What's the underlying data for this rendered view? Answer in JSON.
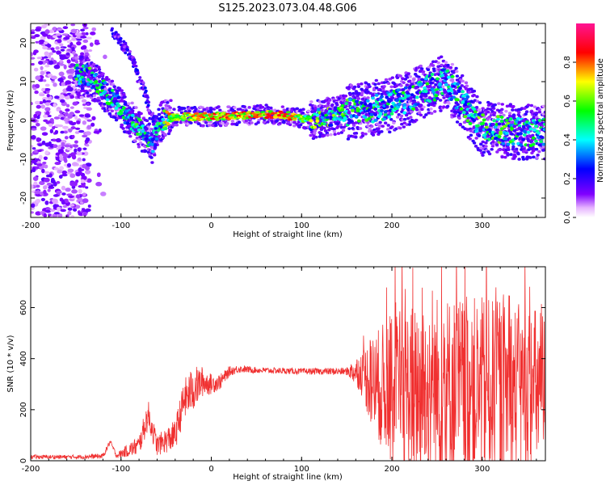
{
  "chart_data": [
    {
      "type": "heatmap",
      "title": "S125.2023.073.04.48.G06",
      "xlabel": "Height of straight line (km)",
      "ylabel": "Frequency (Hz)",
      "xlim": [
        -200,
        370
      ],
      "ylim": [
        -25,
        25
      ],
      "xticks": [
        "-200",
        "-100",
        "0",
        "100",
        "200",
        "300"
      ],
      "yticks": [
        "-20",
        "-10",
        "0",
        "10",
        "20"
      ],
      "grid": false,
      "colorbar": {
        "label": "Normalized spectral amplitude",
        "range": [
          0.0,
          1.0
        ],
        "ticks": [
          "0.0",
          "0.2",
          "0.4",
          "0.6",
          "0.8"
        ],
        "colormap": "hsv-rainbow: purple-blue-cyan-green-yellow-red-pink"
      },
      "ridge": [
        {
          "x": -140,
          "freq": 12,
          "amp": 0.4
        },
        {
          "x": -120,
          "freq": 8,
          "amp": 0.35
        },
        {
          "x": -100,
          "freq": 3,
          "amp": 0.35
        },
        {
          "x": -80,
          "freq": -2,
          "amp": 0.4
        },
        {
          "x": -65,
          "freq": -6,
          "amp": 0.35
        },
        {
          "x": -55,
          "freq": 0,
          "amp": 0.5
        },
        {
          "x": -40,
          "freq": 1,
          "amp": 0.75
        },
        {
          "x": 0,
          "freq": 1,
          "amp": 0.85
        },
        {
          "x": 50,
          "freq": 1.5,
          "amp": 0.85
        },
        {
          "x": 80,
          "freq": 1.5,
          "amp": 0.95
        },
        {
          "x": 110,
          "freq": 0,
          "amp": 0.55
        },
        {
          "x": 150,
          "freq": 2,
          "amp": 0.4
        },
        {
          "x": 200,
          "freq": 4,
          "amp": 0.35
        },
        {
          "x": 240,
          "freq": 8,
          "amp": 0.35
        },
        {
          "x": 260,
          "freq": 10,
          "amp": 0.3
        },
        {
          "x": 300,
          "freq": -2,
          "amp": 0.45
        },
        {
          "x": 340,
          "freq": -3,
          "amp": 0.4
        },
        {
          "x": 370,
          "freq": -3,
          "amp": 0.35
        }
      ],
      "branch": [
        {
          "x": -110,
          "freq": 23
        },
        {
          "x": -90,
          "freq": 17
        },
        {
          "x": -75,
          "freq": 8
        },
        {
          "x": -62,
          "freq": -2
        }
      ]
    },
    {
      "type": "line",
      "xlabel": "Height of straight line (km)",
      "ylabel": "SNR (10 * v/v)",
      "xlim": [
        -200,
        370
      ],
      "ylim": [
        0,
        760
      ],
      "xticks": [
        "-200",
        "-100",
        "0",
        "100",
        "200",
        "300"
      ],
      "yticks": [
        "0",
        "200",
        "400",
        "600"
      ],
      "color": "#f03030",
      "grid": false,
      "series": [
        {
          "x": [
            -200,
            -150,
            -120,
            -112,
            -105,
            -80,
            -70,
            -60,
            -40,
            -30,
            -20,
            -10,
            0,
            10,
            20,
            30,
            50,
            100,
            150,
            165,
            180,
            200,
            250,
            300,
            370
          ],
          "y": [
            15,
            15,
            18,
            75,
            20,
            60,
            180,
            60,
            100,
            240,
            280,
            310,
            300,
            310,
            350,
            360,
            355,
            350,
            350,
            350,
            300,
            280,
            280,
            280,
            280
          ],
          "spread": [
            8,
            8,
            10,
            10,
            10,
            40,
            60,
            40,
            60,
            80,
            90,
            60,
            40,
            30,
            20,
            15,
            12,
            12,
            15,
            80,
            200,
            300,
            380,
            360,
            320
          ]
        }
      ]
    }
  ]
}
